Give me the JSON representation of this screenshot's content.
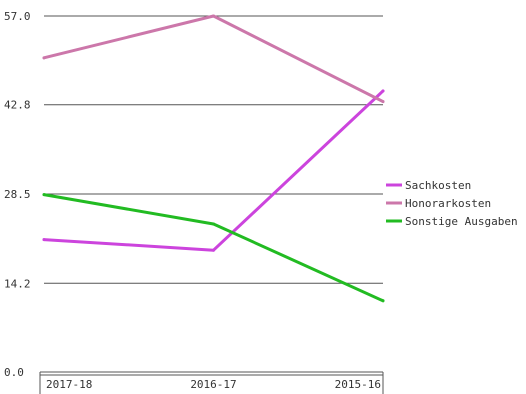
{
  "chart_data": {
    "type": "line",
    "title": "",
    "xlabel": "",
    "ylabel": "",
    "categories": [
      "2017-18",
      "2016-17",
      "2015-16"
    ],
    "ylim": [
      0,
      57.0
    ],
    "y_ticks": [
      "0.0",
      "14.2",
      "28.5",
      "42.8",
      "57.0"
    ],
    "grid": true,
    "legend_position": "right",
    "series": [
      {
        "name": "Sachkosten",
        "color": "#cc44dd",
        "values": [
          21.2,
          19.5,
          45.0
        ]
      },
      {
        "name": "Honorarkosten",
        "color": "#cc77aa",
        "values": [
          50.3,
          57.0,
          43.3
        ]
      },
      {
        "name": "Sonstige Ausgaben",
        "color": "#22bb22",
        "values": [
          28.4,
          23.7,
          11.4
        ]
      }
    ]
  }
}
